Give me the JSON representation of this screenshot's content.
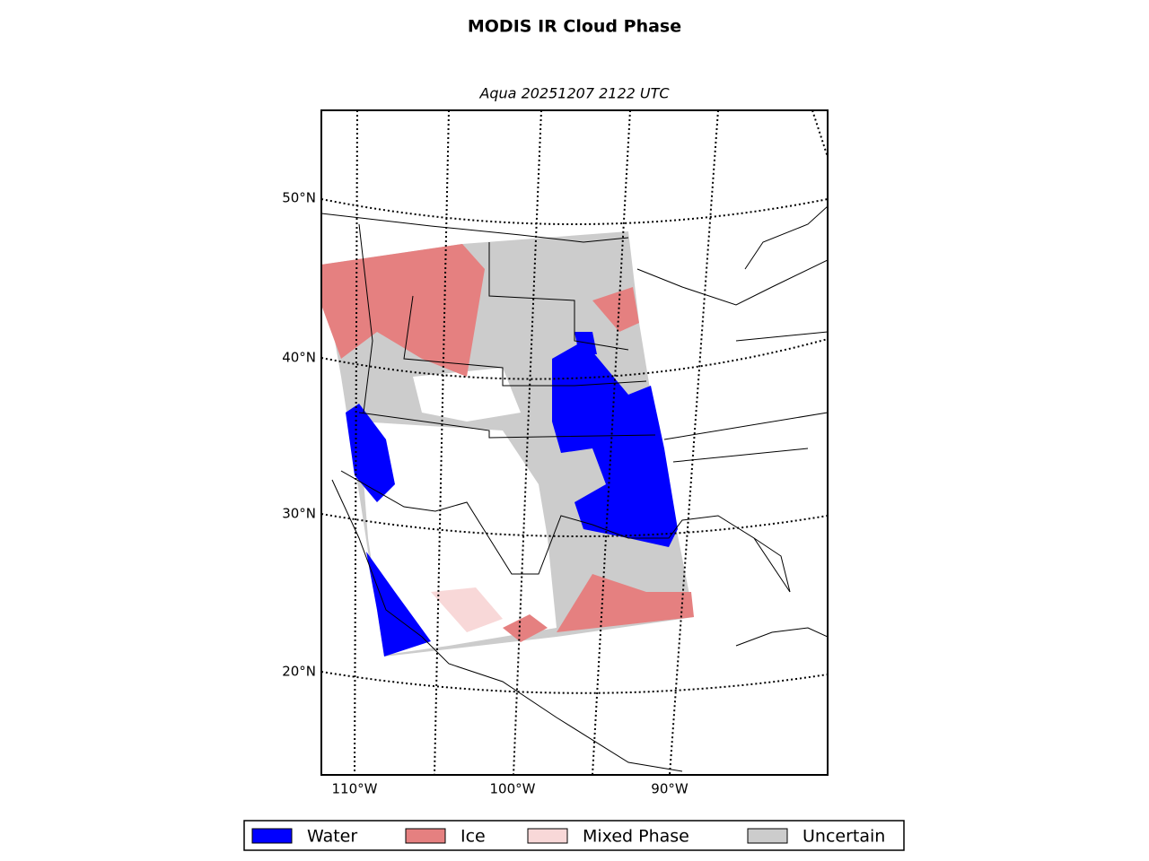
{
  "title": "MODIS IR Cloud Phase",
  "subtitle": "Aqua 20251207 2122 UTC",
  "lat_labels": [
    "50°N",
    "40°N",
    "30°N",
    "20°N"
  ],
  "lon_labels": [
    "110°W",
    "100°W",
    "90°W"
  ],
  "legend": [
    {
      "label": "Water",
      "color": "#0000ff"
    },
    {
      "label": "Ice",
      "color": "#e58080"
    },
    {
      "label": "Mixed Phase",
      "color": "#f8d8d8"
    },
    {
      "label": "Uncertain",
      "color": "#cccccc"
    }
  ]
}
